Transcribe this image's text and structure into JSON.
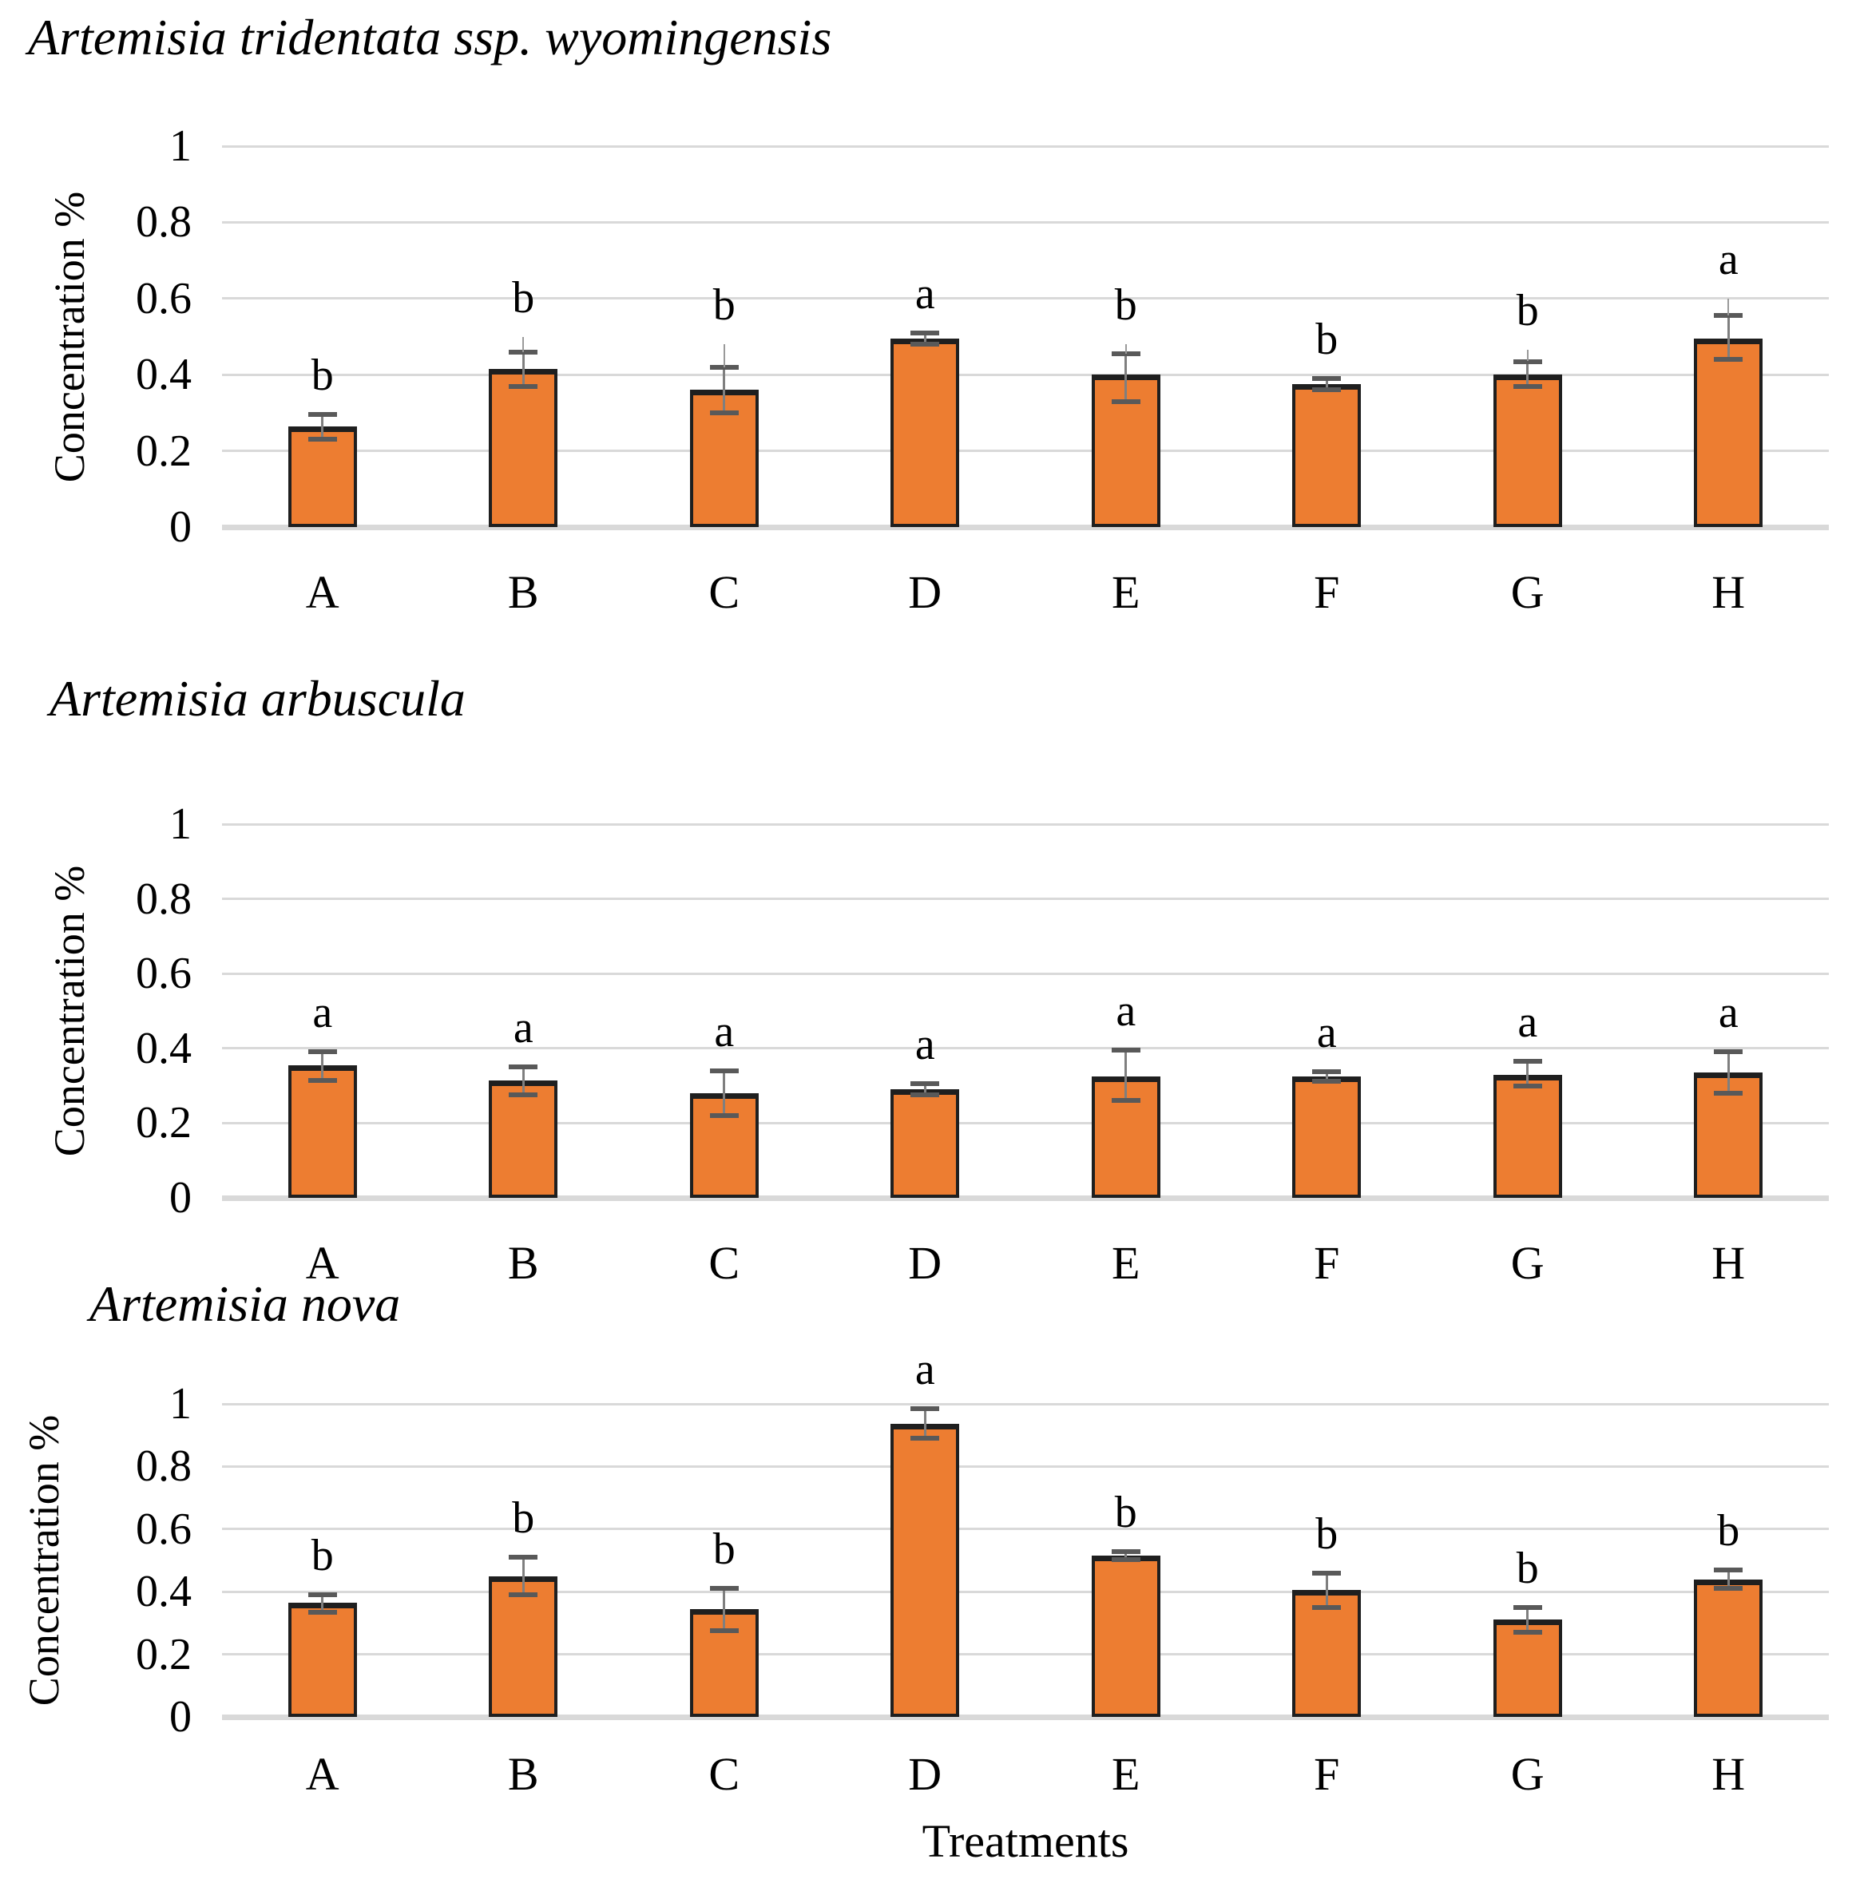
{
  "figure": {
    "xlabel": "Treatments",
    "colors": {
      "bar_fill": "#ED7D31",
      "bar_border": "#1F1F1F",
      "error_bar": "#7F7F7F",
      "error_cap": "#595959",
      "gridline": "#D9D9D9",
      "text": "#000000"
    }
  },
  "chart_data": [
    {
      "type": "bar",
      "title": "Artemisia tridentata ssp. wyomingensis",
      "ylabel": "Concentration %",
      "xlabel": "",
      "categories": [
        "A",
        "B",
        "C",
        "D",
        "E",
        "F",
        "G",
        "H"
      ],
      "values": [
        0.265,
        0.415,
        0.36,
        0.495,
        0.4,
        0.375,
        0.4,
        0.495
      ],
      "errors_up": [
        0.03,
        0.045,
        0.06,
        0.015,
        0.055,
        0.015,
        0.035,
        0.06
      ],
      "errors_down": [
        0.035,
        0.045,
        0.06,
        0.015,
        0.07,
        0.015,
        0.03,
        0.055
      ],
      "extra_whisker_up": [
        0,
        0.04,
        0.06,
        0,
        0.025,
        0,
        0.03,
        0.045
      ],
      "sig_letters": [
        "b",
        "b",
        "b",
        "a",
        "b",
        "b",
        "b",
        "a"
      ],
      "yticks": [
        "1",
        "0.8",
        "0.6",
        "0.4",
        "0.2",
        "0"
      ],
      "ylim": [
        0,
        1
      ],
      "grid": true,
      "legend": "none"
    },
    {
      "type": "bar",
      "title": "Artemisia arbuscula",
      "ylabel": "Concentration %",
      "xlabel": "",
      "categories": [
        "A",
        "B",
        "C",
        "D",
        "E",
        "F",
        "G",
        "H"
      ],
      "values": [
        0.355,
        0.315,
        0.28,
        0.29,
        0.325,
        0.325,
        0.33,
        0.335
      ],
      "errors_up": [
        0.035,
        0.035,
        0.06,
        0.015,
        0.07,
        0.012,
        0.035,
        0.055
      ],
      "errors_down": [
        0.04,
        0.04,
        0.06,
        0.015,
        0.065,
        0.012,
        0.03,
        0.055
      ],
      "extra_whisker_up": [
        0,
        0,
        0,
        0,
        0,
        0,
        0,
        0
      ],
      "sig_letters": [
        "a",
        "a",
        "a",
        "a",
        "a",
        "a",
        "a",
        "a"
      ],
      "yticks": [
        "1",
        "0.8",
        "0.6",
        "0.4",
        "0.2",
        "0"
      ],
      "ylim": [
        0,
        1
      ],
      "grid": true,
      "legend": "none"
    },
    {
      "type": "bar",
      "title": "Artemisia nova",
      "ylabel": "Concentration %",
      "xlabel": "Treatments",
      "categories": [
        "A",
        "B",
        "C",
        "D",
        "E",
        "F",
        "G",
        "H"
      ],
      "values": [
        0.365,
        0.45,
        0.345,
        0.935,
        0.515,
        0.405,
        0.31,
        0.44
      ],
      "errors_up": [
        0.025,
        0.06,
        0.065,
        0.05,
        0.012,
        0.055,
        0.04,
        0.03
      ],
      "errors_down": [
        0.03,
        0.06,
        0.07,
        0.045,
        0.012,
        0.055,
        0.04,
        0.03
      ],
      "extra_whisker_up": [
        0,
        0,
        0,
        0,
        0,
        0,
        0,
        0
      ],
      "sig_letters": [
        "b",
        "b",
        "b",
        "a",
        "b",
        "b",
        "b",
        "b"
      ],
      "yticks": [
        "1",
        "0.8",
        "0.6",
        "0.4",
        "0.2",
        "0"
      ],
      "ylim": [
        0,
        1
      ],
      "grid": true,
      "legend": "none"
    }
  ]
}
